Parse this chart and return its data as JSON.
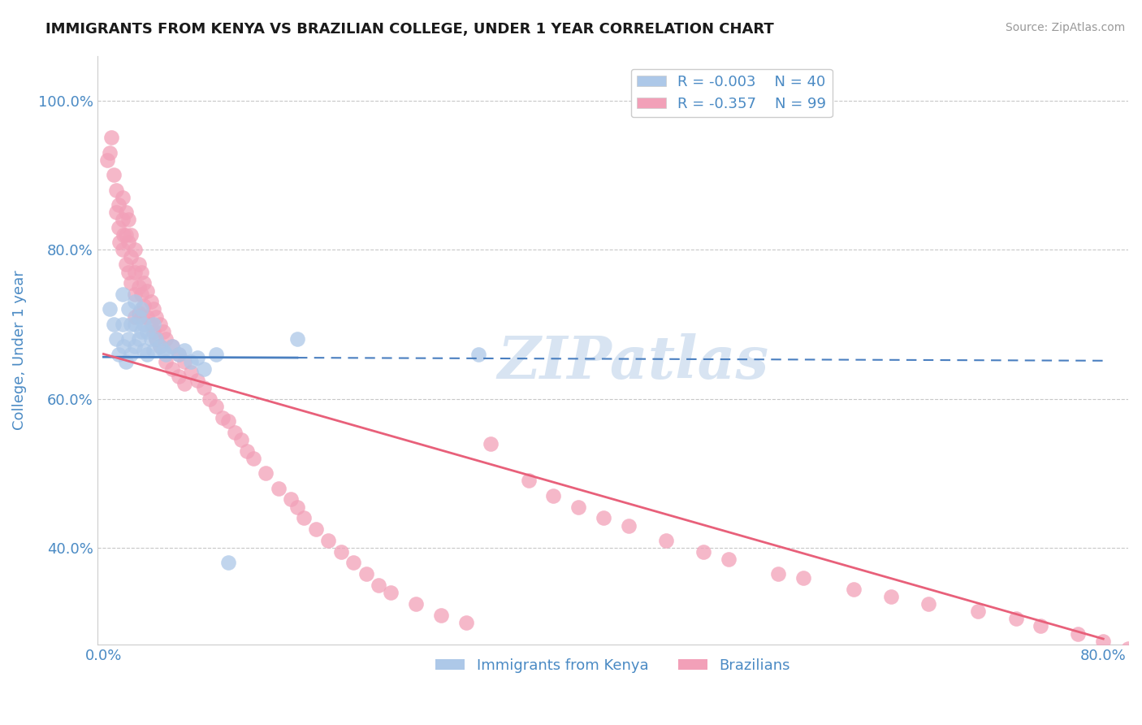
{
  "title": "IMMIGRANTS FROM KENYA VS BRAZILIAN COLLEGE, UNDER 1 YEAR CORRELATION CHART",
  "source": "Source: ZipAtlas.com",
  "ylabel": "College, Under 1 year",
  "xlim": [
    -0.005,
    0.82
  ],
  "ylim": [
    0.27,
    1.06
  ],
  "xticks": [
    0.0,
    0.8
  ],
  "xticklabels": [
    "0.0%",
    "80.0%"
  ],
  "yticks": [
    0.4,
    0.6,
    0.8,
    1.0
  ],
  "yticklabels": [
    "40.0%",
    "60.0%",
    "80.0%",
    "100.0%"
  ],
  "legend_labels": [
    "Immigrants from Kenya",
    "Brazilians"
  ],
  "legend_r": [
    "R = -0.003",
    "R = -0.357"
  ],
  "legend_n": [
    "N = 40",
    "N = 99"
  ],
  "blue_color": "#adc8e8",
  "pink_color": "#f2a0b8",
  "blue_line_color": "#4a7fc0",
  "pink_line_color": "#e8607a",
  "blue_line_solid_end": 0.155,
  "watermark": "ZIPatlas",
  "grid_color": "#c8c8c8",
  "blue_scatter_x": [
    0.005,
    0.008,
    0.01,
    0.012,
    0.015,
    0.015,
    0.016,
    0.018,
    0.02,
    0.02,
    0.022,
    0.022,
    0.025,
    0.025,
    0.025,
    0.028,
    0.028,
    0.03,
    0.03,
    0.032,
    0.032,
    0.035,
    0.035,
    0.038,
    0.04,
    0.04,
    0.042,
    0.045,
    0.048,
    0.05,
    0.055,
    0.06,
    0.065,
    0.07,
    0.075,
    0.08,
    0.09,
    0.1,
    0.155,
    0.3
  ],
  "blue_scatter_y": [
    0.72,
    0.7,
    0.68,
    0.66,
    0.74,
    0.7,
    0.67,
    0.65,
    0.72,
    0.68,
    0.7,
    0.66,
    0.73,
    0.7,
    0.67,
    0.71,
    0.68,
    0.72,
    0.69,
    0.7,
    0.665,
    0.69,
    0.66,
    0.68,
    0.7,
    0.665,
    0.68,
    0.67,
    0.665,
    0.66,
    0.67,
    0.66,
    0.665,
    0.65,
    0.655,
    0.64,
    0.66,
    0.38,
    0.68,
    0.66
  ],
  "pink_scatter_x": [
    0.003,
    0.005,
    0.006,
    0.008,
    0.01,
    0.01,
    0.012,
    0.012,
    0.013,
    0.015,
    0.015,
    0.015,
    0.016,
    0.018,
    0.018,
    0.018,
    0.02,
    0.02,
    0.02,
    0.022,
    0.022,
    0.022,
    0.025,
    0.025,
    0.025,
    0.025,
    0.028,
    0.028,
    0.028,
    0.03,
    0.03,
    0.03,
    0.032,
    0.032,
    0.035,
    0.035,
    0.038,
    0.038,
    0.04,
    0.04,
    0.042,
    0.042,
    0.045,
    0.045,
    0.048,
    0.05,
    0.05,
    0.055,
    0.055,
    0.06,
    0.06,
    0.065,
    0.065,
    0.07,
    0.075,
    0.08,
    0.085,
    0.09,
    0.095,
    0.1,
    0.105,
    0.11,
    0.115,
    0.12,
    0.13,
    0.14,
    0.15,
    0.155,
    0.16,
    0.17,
    0.18,
    0.19,
    0.2,
    0.21,
    0.22,
    0.23,
    0.25,
    0.27,
    0.29,
    0.31,
    0.34,
    0.36,
    0.38,
    0.4,
    0.42,
    0.45,
    0.48,
    0.5,
    0.54,
    0.56,
    0.6,
    0.63,
    0.66,
    0.7,
    0.73,
    0.75,
    0.78,
    0.8,
    0.82
  ],
  "pink_scatter_y": [
    0.92,
    0.93,
    0.95,
    0.9,
    0.88,
    0.85,
    0.86,
    0.83,
    0.81,
    0.87,
    0.84,
    0.8,
    0.82,
    0.85,
    0.82,
    0.78,
    0.84,
    0.81,
    0.77,
    0.82,
    0.79,
    0.755,
    0.8,
    0.77,
    0.74,
    0.71,
    0.78,
    0.75,
    0.715,
    0.77,
    0.74,
    0.71,
    0.755,
    0.725,
    0.745,
    0.71,
    0.73,
    0.7,
    0.72,
    0.69,
    0.71,
    0.68,
    0.7,
    0.67,
    0.69,
    0.68,
    0.65,
    0.67,
    0.64,
    0.66,
    0.63,
    0.65,
    0.62,
    0.635,
    0.625,
    0.615,
    0.6,
    0.59,
    0.575,
    0.57,
    0.555,
    0.545,
    0.53,
    0.52,
    0.5,
    0.48,
    0.465,
    0.455,
    0.44,
    0.425,
    0.41,
    0.395,
    0.38,
    0.365,
    0.35,
    0.34,
    0.325,
    0.31,
    0.3,
    0.54,
    0.49,
    0.47,
    0.455,
    0.44,
    0.43,
    0.41,
    0.395,
    0.385,
    0.365,
    0.36,
    0.345,
    0.335,
    0.325,
    0.315,
    0.305,
    0.295,
    0.285,
    0.275,
    0.265
  ],
  "blue_line_x": [
    0.0,
    0.8
  ],
  "blue_line_y": [
    0.656,
    0.651
  ],
  "pink_line_x": [
    0.0,
    0.8
  ],
  "pink_line_y": [
    0.66,
    0.278
  ],
  "title_color": "#1a1a1a",
  "axis_label_color": "#4a8ac4",
  "tick_color": "#4a8ac4"
}
